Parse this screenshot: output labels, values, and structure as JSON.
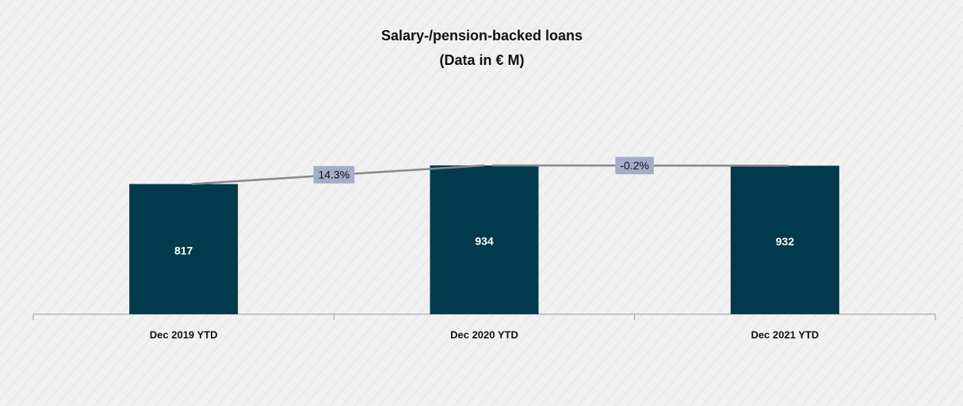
{
  "chart_data": {
    "type": "bar",
    "title": "Salary-/pension-backed loans",
    "subtitle": "(Data in € M)",
    "categories": [
      "Dec 2019 YTD",
      "Dec 2020 YTD",
      "Dec 2021 YTD"
    ],
    "values": [
      817,
      934,
      932
    ],
    "color": "#003a4c",
    "annotations": [
      "14.3%",
      "-0.2%"
    ]
  }
}
